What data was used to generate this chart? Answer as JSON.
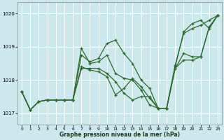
{
  "background_color": "#cce8ec",
  "grid_color": "#ffffff",
  "line_color": "#2d6a2d",
  "x_ticks": [
    0,
    1,
    2,
    3,
    4,
    5,
    6,
    7,
    8,
    9,
    10,
    11,
    12,
    13,
    14,
    15,
    16,
    17,
    18,
    19,
    20,
    21,
    22,
    23
  ],
  "y_ticks": [
    1017,
    1018,
    1019,
    1020
  ],
  "ylim": [
    1016.65,
    1020.35
  ],
  "xlim": [
    -0.5,
    23.5
  ],
  "xlabel": "Graphe pression niveau de la mer (hPa)",
  "series": [
    [
      1017.65,
      1017.1,
      1017.35,
      1017.4,
      1017.4,
      1017.4,
      1017.4,
      1018.75,
      1018.55,
      1018.65,
      1019.1,
      1019.2,
      1018.8,
      1018.5,
      1018.0,
      1017.75,
      1017.15,
      1017.15,
      1018.45,
      1019.4,
      1019.55,
      1019.65,
      1019.8,
      1019.95
    ],
    [
      1017.65,
      1017.1,
      1017.35,
      1017.4,
      1017.4,
      1017.4,
      1017.4,
      1018.95,
      1018.5,
      1018.55,
      1018.75,
      1018.2,
      1018.05,
      1018.0,
      1017.7,
      1017.25,
      1017.15,
      1017.15,
      1018.35,
      1018.8,
      1018.7,
      1018.7,
      1019.6,
      1019.95
    ],
    [
      1017.65,
      1017.1,
      1017.35,
      1017.4,
      1017.4,
      1017.4,
      1017.4,
      1018.4,
      1018.3,
      1018.25,
      1018.1,
      1017.55,
      1017.75,
      1018.05,
      1017.8,
      1017.45,
      1017.15,
      1017.15,
      1018.4,
      1019.45,
      1019.7,
      1019.8,
      1019.55,
      1019.95
    ],
    [
      1017.65,
      1017.1,
      1017.35,
      1017.4,
      1017.4,
      1017.4,
      1017.4,
      1018.35,
      1018.35,
      1018.35,
      1018.2,
      1017.95,
      1017.6,
      1017.4,
      1017.5,
      1017.5,
      1017.15,
      1017.15,
      1018.35,
      1018.6,
      1018.6,
      1018.7,
      1019.6,
      1019.95
    ]
  ]
}
